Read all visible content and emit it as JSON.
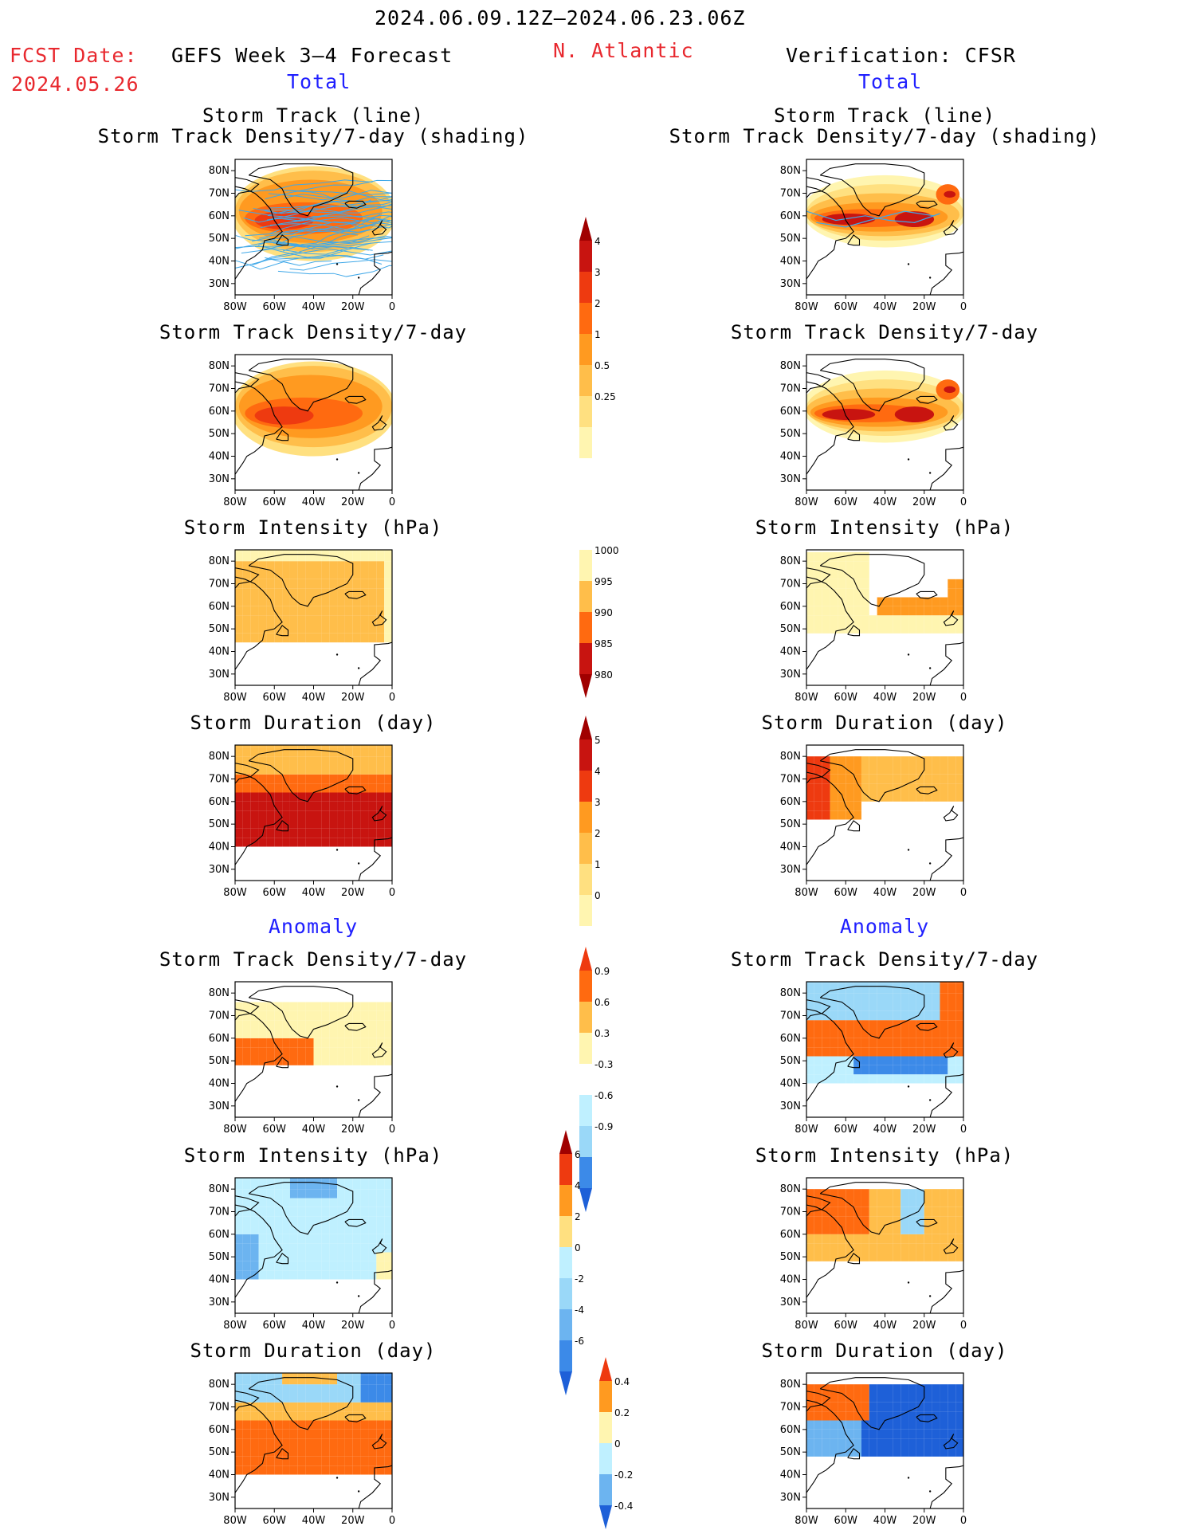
{
  "header": {
    "date_range": "2024.06.09.12Z–2024.06.23.06Z",
    "fcst_label": "FCST Date:",
    "fcst_date": "2024.05.26",
    "model_title": "GEFS Week 3–4 Forecast",
    "region": "N. Atlantic",
    "verification": "Verification: CFSR"
  },
  "columns": {
    "left_total": "Total",
    "right_total": "Total",
    "left_anomaly": "Anomaly",
    "right_anomaly": "Anomaly"
  },
  "panel_titles": {
    "track_line": "Storm Track (line)",
    "track_shading": "Storm Track Density/7-day (shading)",
    "density": "Storm Track Density/7-day",
    "intensity": "Storm Intensity (hPa)",
    "duration": "Storm Duration (day)"
  },
  "axes": {
    "lat_labels": [
      "80N",
      "70N",
      "60N",
      "50N",
      "40N",
      "30N"
    ],
    "lon_labels": [
      "80W",
      "60W",
      "40W",
      "20W",
      "0"
    ]
  },
  "colorbars": {
    "density_total": [
      "4",
      "3",
      "2",
      "1",
      "0.5",
      "0.25"
    ],
    "intensity_total": [
      "1000",
      "995",
      "990",
      "985",
      "980"
    ],
    "duration_total": [
      "5",
      "4",
      "3",
      "2",
      "1",
      "0"
    ],
    "density_anom": [
      "0.9",
      "0.6",
      "0.3",
      "-0.3",
      "-0.6",
      "-0.9"
    ],
    "intensity_anom": [
      "6",
      "4",
      "2",
      "0",
      "-2",
      "-4",
      "-6"
    ],
    "duration_anom": [
      "0.4",
      "0.2",
      "0",
      "-0.2",
      "-0.4"
    ]
  },
  "colors": {
    "warm": [
      "#fff5b0",
      "#ffe080",
      "#ffbe4a",
      "#ff9a20",
      "#ff6a10",
      "#ee3a10",
      "#c81410",
      "#a00000"
    ],
    "cool": [
      "#bff0ff",
      "#9ad8f8",
      "#6cb4f0",
      "#3c8ae8",
      "#1e60d8"
    ],
    "track_line": "#40a8e8",
    "red_text": "#e8282e",
    "blue_text": "#2020ff"
  }
}
